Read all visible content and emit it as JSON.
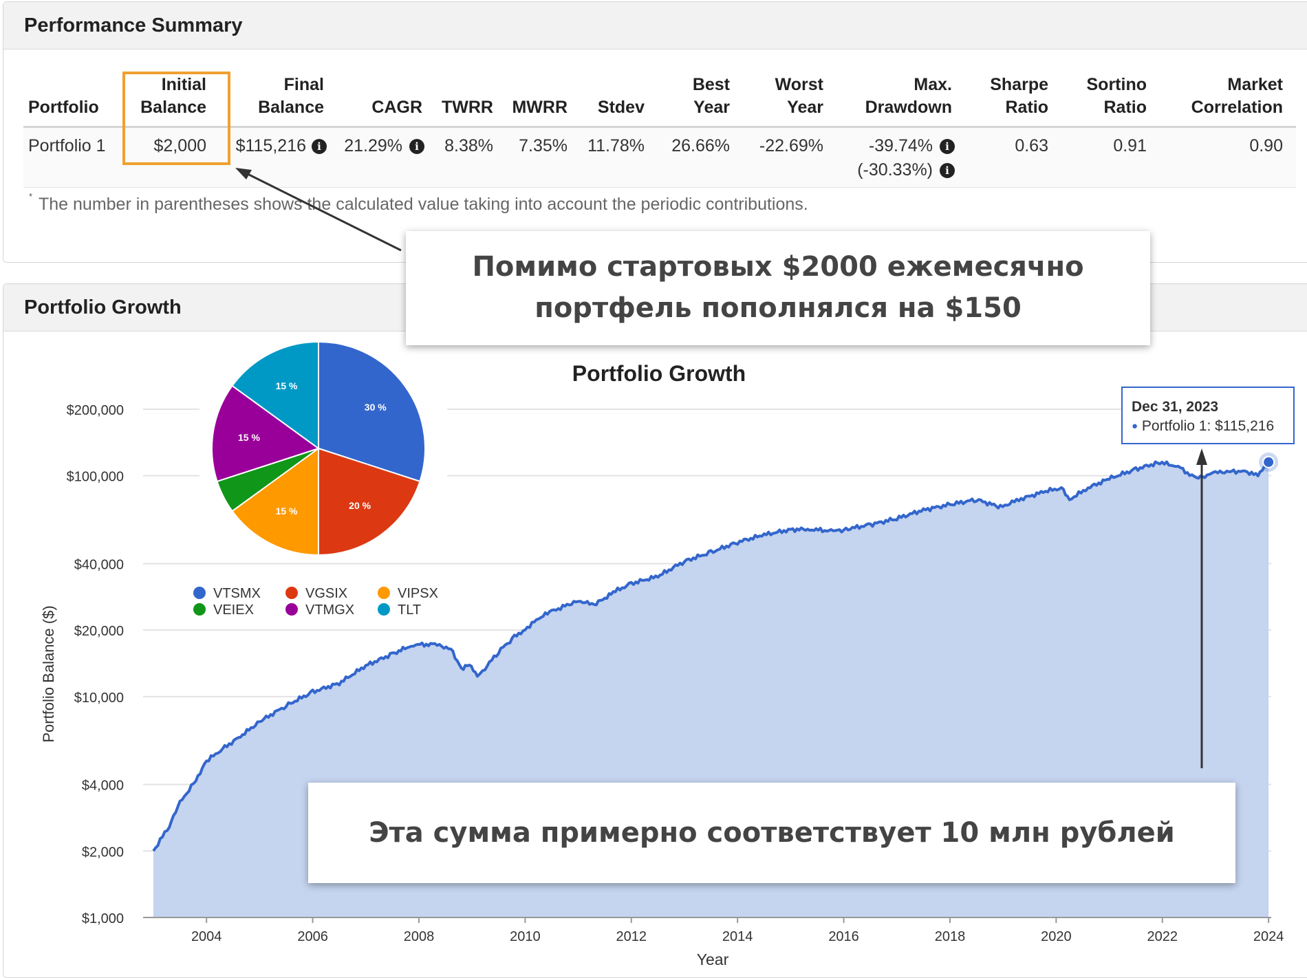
{
  "perf": {
    "title": "Performance Summary",
    "headers": {
      "portfolio": "Portfolio",
      "initial_1": "Initial",
      "initial_2": "Balance",
      "final_1": "Final",
      "final_2": "Balance",
      "cagr": "CAGR",
      "twrr": "TWRR",
      "mwrr": "MWRR",
      "stdev": "Stdev",
      "best_1": "Best",
      "best_2": "Year",
      "worst_1": "Worst",
      "worst_2": "Year",
      "dd_1": "Max.",
      "dd_2": "Drawdown",
      "sharpe_1": "Sharpe",
      "sharpe_2": "Ratio",
      "sortino_1": "Sortino",
      "sortino_2": "Ratio",
      "corr_1": "Market",
      "corr_2": "Correlation"
    },
    "row": {
      "portfolio": "Portfolio 1",
      "initial": "$2,000",
      "final": "$115,216",
      "cagr": "21.29%",
      "twrr": "8.38%",
      "mwrr": "7.35%",
      "stdev": "11.78%",
      "best": "26.66%",
      "worst": "-22.69%",
      "drawdown": "-39.74%",
      "drawdown_contrib": "(-30.33%)",
      "sharpe": "0.63",
      "sortino": "0.91",
      "correlation": "0.90"
    },
    "footnote_mark": "*",
    "footnote": "The number in parentheses shows the calculated value taking into account the periodic contributions."
  },
  "growth": {
    "title": "Portfolio Growth"
  },
  "callouts": {
    "top_1": "Помимо стартовых $2000 ежемесячно",
    "top_2": "портфель пополнялся на $150",
    "bottom": "Эта сумма примерно соответствует 10 млн рублей"
  },
  "tooltip": {
    "date": "Dec 31, 2023",
    "text": "Portfolio 1: $115,216"
  },
  "colors": {
    "line": "#3366cc",
    "area": "#c5d4ef",
    "highlight": "#f0a030"
  },
  "chart_data": [
    {
      "type": "area",
      "title": "Portfolio Growth",
      "xlabel": "Year",
      "ylabel": "Portfolio Balance ($)",
      "yscale": "log",
      "xlim": [
        2003,
        2024.05
      ],
      "ylim": [
        1000,
        200000
      ],
      "x_ticks": [
        2004,
        2006,
        2008,
        2010,
        2012,
        2014,
        2016,
        2018,
        2020,
        2022,
        2024
      ],
      "y_ticks": [
        1000,
        2000,
        4000,
        10000,
        20000,
        40000,
        100000,
        200000
      ],
      "y_tick_labels": [
        "$1,000",
        "$2,000",
        "$4,000",
        "$10,000",
        "$20,000",
        "$40,000",
        "$100,000",
        "$200,000"
      ],
      "series": [
        {
          "name": "Portfolio 1",
          "x": [
            2003.0,
            2003.3,
            2003.5,
            2003.8,
            2004.0,
            2004.3,
            2004.6,
            2005.0,
            2005.5,
            2006.0,
            2006.5,
            2007.0,
            2007.5,
            2007.9,
            2008.3,
            2008.6,
            2008.8,
            2008.95,
            2009.1,
            2009.2,
            2009.5,
            2009.8,
            2010.0,
            2010.3,
            2010.5,
            2011.0,
            2011.3,
            2011.7,
            2012.0,
            2012.5,
            2013.0,
            2013.5,
            2014.0,
            2014.5,
            2015.0,
            2015.4,
            2015.8,
            2016.0,
            2016.5,
            2017.0,
            2017.5,
            2018.0,
            2018.5,
            2018.95,
            2019.3,
            2019.8,
            2020.1,
            2020.25,
            2020.6,
            2021.0,
            2021.5,
            2021.95,
            2022.3,
            2022.6,
            2022.8,
            2023.0,
            2023.3,
            2023.6,
            2023.8,
            2024.0
          ],
          "y": [
            2000,
            2600,
            3300,
            4200,
            5100,
            5800,
            6500,
            7700,
            9100,
            10500,
            11500,
            13800,
            15600,
            17200,
            17200,
            16500,
            13400,
            14000,
            12300,
            13000,
            16000,
            18600,
            20200,
            23000,
            24300,
            27200,
            26000,
            30000,
            32500,
            35000,
            41000,
            45000,
            50000,
            54000,
            57000,
            57300,
            56000,
            57000,
            60000,
            64000,
            70000,
            74000,
            78000,
            72000,
            78000,
            85000,
            88000,
            78000,
            88000,
            97000,
            107000,
            115000,
            110000,
            98000,
            100000,
            103000,
            105000,
            104000,
            100000,
            115216
          ]
        }
      ],
      "tooltip_point": {
        "x": "Dec 31, 2023",
        "y": 115216
      }
    },
    {
      "type": "pie",
      "categories": [
        "VTSMX",
        "VGSIX",
        "VIPSX",
        "VEIEX",
        "VTMGX",
        "TLT"
      ],
      "values": [
        30,
        20,
        15,
        5,
        15,
        15
      ],
      "labels": [
        "30 %",
        "20 %",
        "15 %",
        "",
        "15 %",
        "15 %"
      ],
      "colors": [
        "#3366cc",
        "#dc3912",
        "#ff9900",
        "#109618",
        "#990099",
        "#0099c6"
      ]
    }
  ]
}
